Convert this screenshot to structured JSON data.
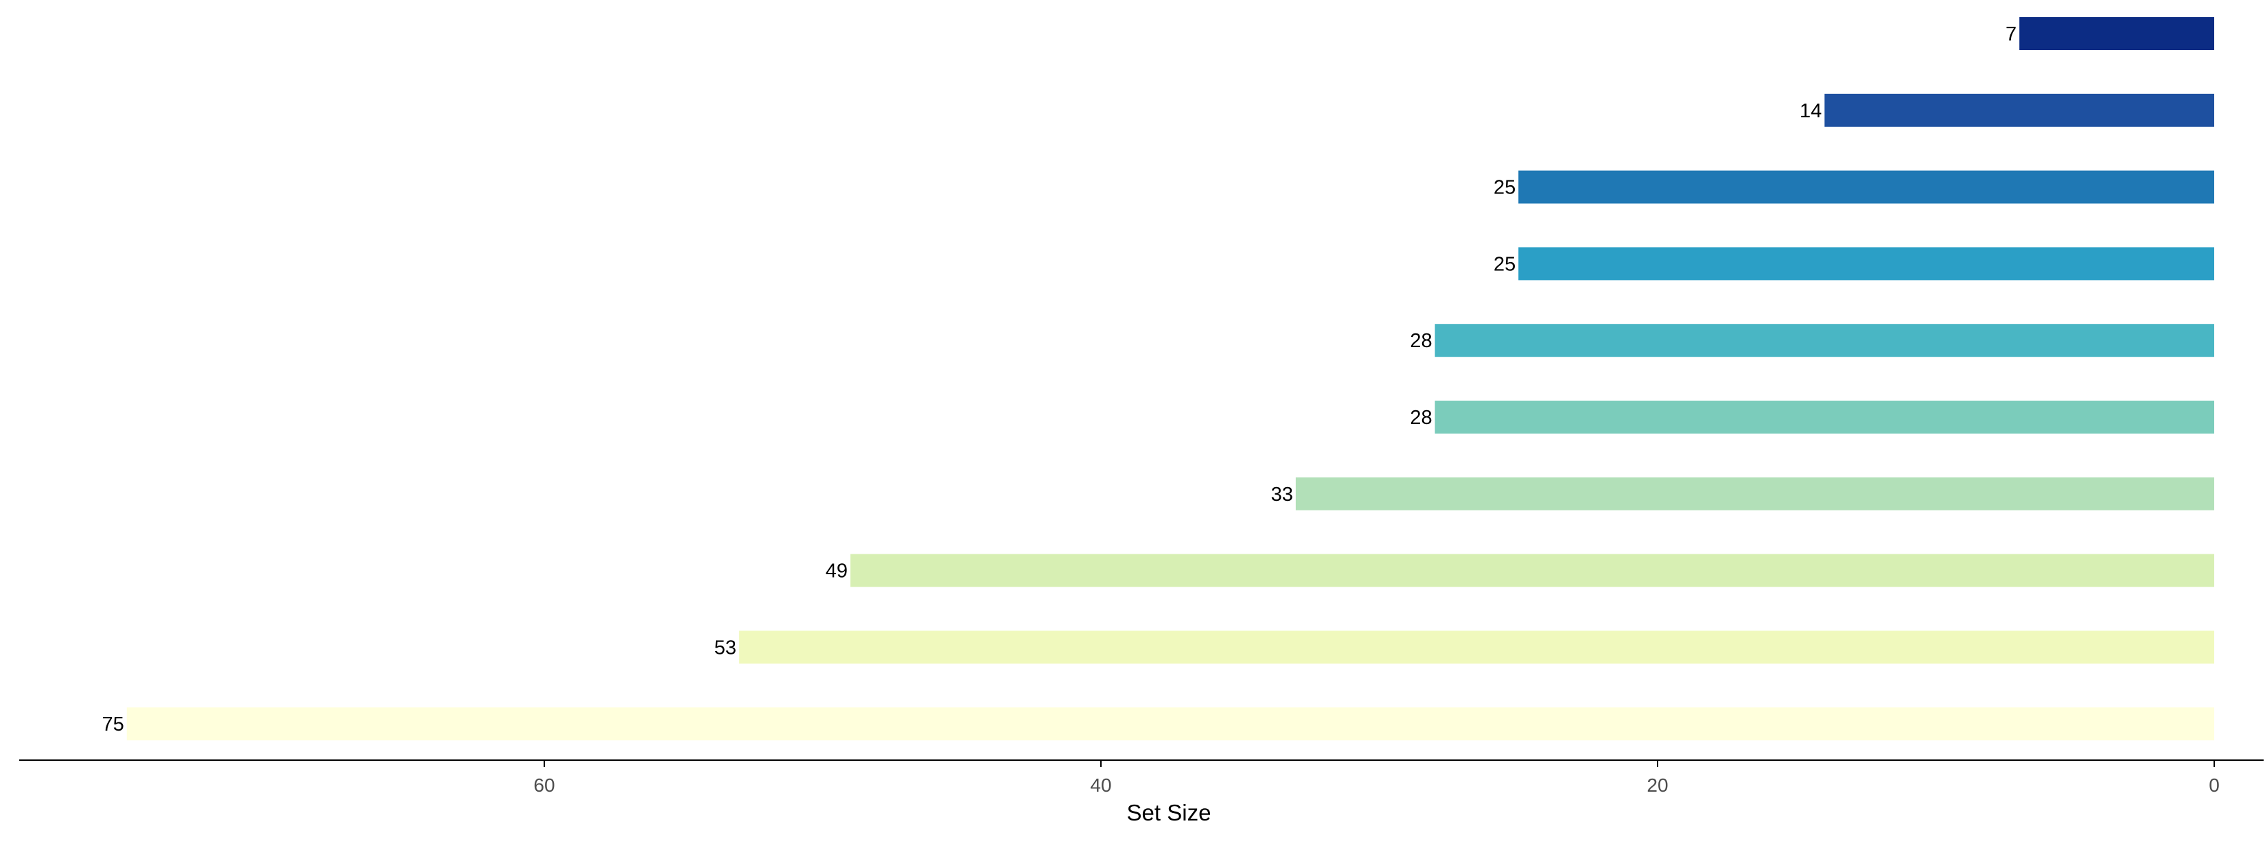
{
  "chart_data": {
    "type": "bar",
    "orientation": "horizontal",
    "x_direction": "reversed",
    "title": "",
    "xlabel": "Set Size",
    "ylabel": "",
    "xlim": [
      0,
      80
    ],
    "xticks": [
      0,
      20,
      40,
      60
    ],
    "grid": false,
    "legend": "none",
    "values": [
      7,
      14,
      25,
      25,
      28,
      28,
      33,
      49,
      53,
      75
    ],
    "bar_labels": [
      "7",
      "14",
      "25",
      "25",
      "28",
      "28",
      "33",
      "49",
      "53",
      "75"
    ],
    "colors": [
      "#0c2c84",
      "#1e50a0",
      "#1f78b4",
      "#2b9fc6",
      "#49b6c4",
      "#7bccbb",
      "#b2e0b8",
      "#d7efb3",
      "#f0f9bd",
      "#ffffdc"
    ]
  }
}
